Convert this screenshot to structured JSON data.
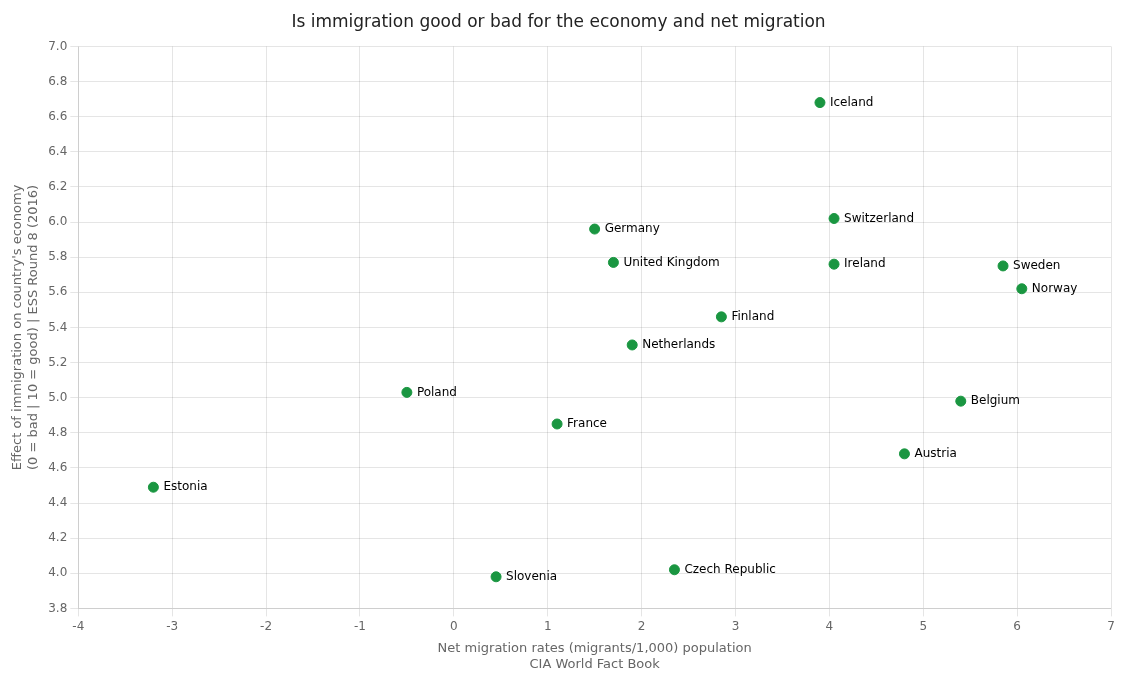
{
  "chart_data": {
    "type": "scatter",
    "title": "Is immigration good or bad for the economy and net migration",
    "x_label": "Net migration rates (migrants/1,000) population\nCIA World Fact Book",
    "y_label": "Effect of immigration on country's economy\n(0 = bad | 10 = good) | ESS Round 8 (2016)",
    "labels": [
      "Iceland",
      "Switzerland",
      "Germany",
      "Ireland",
      "United Kingdom",
      "Sweden",
      "Norway",
      "Finland",
      "Netherlands",
      "Belgium",
      "Poland",
      "France",
      "Austria",
      "Estonia",
      "Czech Republic",
      "Slovenia"
    ],
    "x": [
      3.9,
      4.05,
      1.5,
      4.05,
      1.7,
      5.85,
      6.05,
      2.85,
      1.9,
      5.4,
      -0.5,
      1.1,
      4.8,
      -3.2,
      2.35,
      0.45
    ],
    "values": [
      6.68,
      6.02,
      5.96,
      5.76,
      5.77,
      5.75,
      5.62,
      5.46,
      5.3,
      4.98,
      5.03,
      4.85,
      4.68,
      4.49,
      4.02,
      3.98
    ],
    "color": "#1a9641",
    "xlim": [
      -4,
      7
    ],
    "ylim": [
      3.8,
      7.0
    ],
    "xticks": [
      -4,
      -3,
      -2,
      -1,
      0,
      1,
      2,
      3,
      4,
      5,
      6,
      7
    ],
    "yticks": [
      3.8,
      {
        "value": 4.0,
        "label": "4.0"
      },
      4.2,
      4.4,
      4.6,
      4.8,
      {
        "value": 5.0,
        "label": "5.0"
      },
      5.2,
      5.4,
      5.6,
      5.8,
      {
        "value": 6.0,
        "label": "6.0"
      },
      6.2,
      6.4,
      6.6,
      6.8,
      {
        "value": 7.0,
        "label": "7.0"
      }
    ],
    "grid": true
  }
}
